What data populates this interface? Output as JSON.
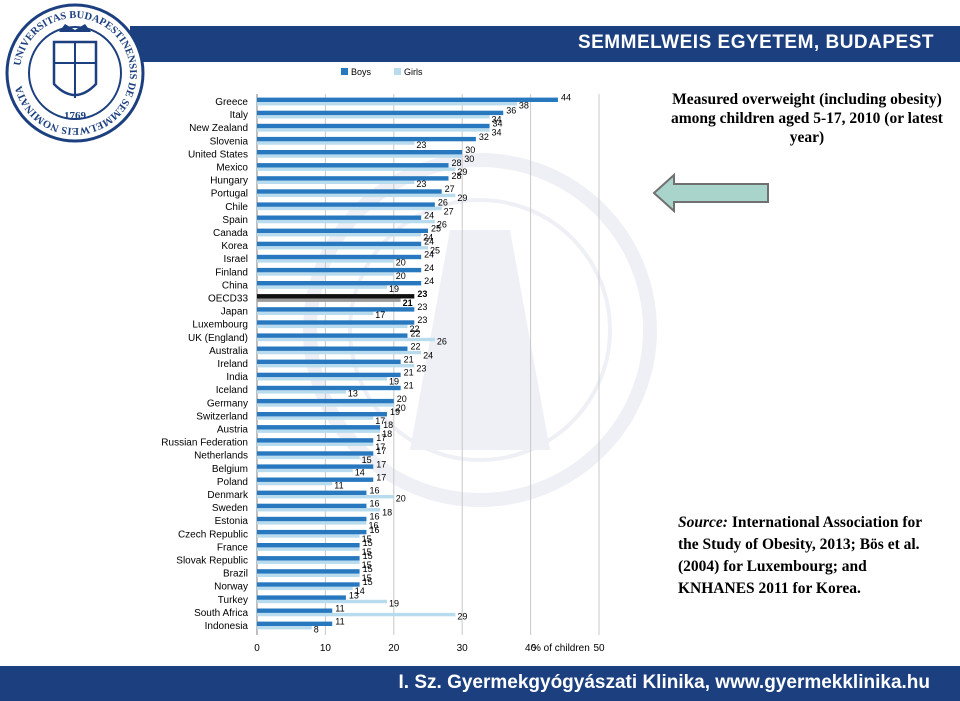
{
  "header": {
    "banner_text": "SEMMELWEIS EGYETEM, BUDAPEST"
  },
  "footer": {
    "banner_text": "I. Sz. Gyermekgyógyászati Klinika, www.gyermekklinika.hu"
  },
  "seal": {
    "ring_text": "UNIVERSITAS BUDAPESTINENSIS DE SEMMELWEIS NOMINATA",
    "year": "1769"
  },
  "slide": {
    "title": "Measured overweight (including obesity) among children aged 5-17, 2010 (or latest year)",
    "source_label": "Source:",
    "source_text": "International Association for the Study of Obesity, 2013; Bös et al. (2004) for Luxembourg; and KNHANES 2011 for Korea."
  },
  "colors": {
    "boys": "#2878c0",
    "girls": "#b8dcee",
    "oecd_boys": "#111111",
    "oecd_girls": "#9a9a9a",
    "banner": "#1c3f7f",
    "arrow_fill": "#a8d4cc",
    "arrow_stroke": "#707070"
  },
  "chart_data": {
    "type": "bar",
    "orientation": "horizontal",
    "xlabel": "% of children",
    "xlim": [
      0,
      50
    ],
    "xticks": [
      "0",
      "10",
      "20",
      "30",
      "40",
      "50"
    ],
    "legend": {
      "placement": "top",
      "entries": [
        "Boys",
        "Girls"
      ]
    },
    "categories": [
      "Greece",
      "Italy",
      "New Zealand",
      "Slovenia",
      "United States",
      "Mexico",
      "Hungary",
      "Portugal",
      "Chile",
      "Spain",
      "Canada",
      "Korea",
      "Israel",
      "Finland",
      "China",
      "OECD33",
      "Japan",
      "Luxembourg",
      "UK (England)",
      "Australia",
      "Ireland",
      "India",
      "Iceland",
      "Germany",
      "Switzerland",
      "Austria",
      "Russian Federation",
      "Netherlands",
      "Belgium",
      "Poland",
      "Denmark",
      "Sweden",
      "Estonia",
      "Czech Republic",
      "France",
      "Slovak Republic",
      "Brazil",
      "Norway",
      "Turkey",
      "South Africa",
      "Indonesia"
    ],
    "series": [
      {
        "name": "Boys",
        "values": [
          44,
          36,
          34,
          32,
          30,
          28,
          28,
          27,
          26,
          24,
          25,
          24,
          24,
          24,
          24,
          23,
          23,
          23,
          22,
          22,
          21,
          21,
          21,
          20,
          19,
          18,
          17,
          17,
          17,
          17,
          16,
          16,
          16,
          16,
          15,
          15,
          15,
          15,
          13,
          11,
          11
        ],
        "labels": [
          "44",
          "36",
          "34",
          "32",
          "30",
          "28",
          "28",
          "27",
          "26",
          "24",
          "25",
          "24",
          "24",
          "24",
          "24",
          "23",
          "23",
          "23",
          "22",
          "22",
          "21",
          "21",
          "21",
          "20",
          "19",
          "18",
          "17",
          "17",
          "17",
          "17",
          "16",
          "16",
          "16",
          "16",
          "15",
          "15",
          "15",
          "15",
          "13",
          "11",
          "11"
        ]
      },
      {
        "name": "Girls",
        "values": [
          38,
          34,
          34,
          23,
          30,
          29,
          23,
          29,
          27,
          26,
          24,
          25,
          20,
          20,
          19,
          21,
          17,
          22,
          26,
          24,
          23,
          19,
          13,
          20,
          17,
          18,
          17,
          15,
          14,
          11,
          20,
          18,
          16,
          15,
          15,
          15,
          15,
          14,
          19,
          29,
          8
        ],
        "labels": [
          "38",
          "34",
          "34",
          "23",
          "30",
          "29",
          "23",
          "29",
          "27",
          "26",
          "24",
          "25",
          "20",
          "20",
          "19",
          "21",
          "17",
          "22",
          "26",
          "24",
          "23",
          "19",
          "13",
          "20",
          "17",
          "18",
          "17",
          "15",
          "14",
          "11",
          "20",
          "18",
          "16",
          "15",
          "15",
          "15",
          "15",
          "14",
          "19",
          "29",
          "8"
        ]
      }
    ]
  }
}
